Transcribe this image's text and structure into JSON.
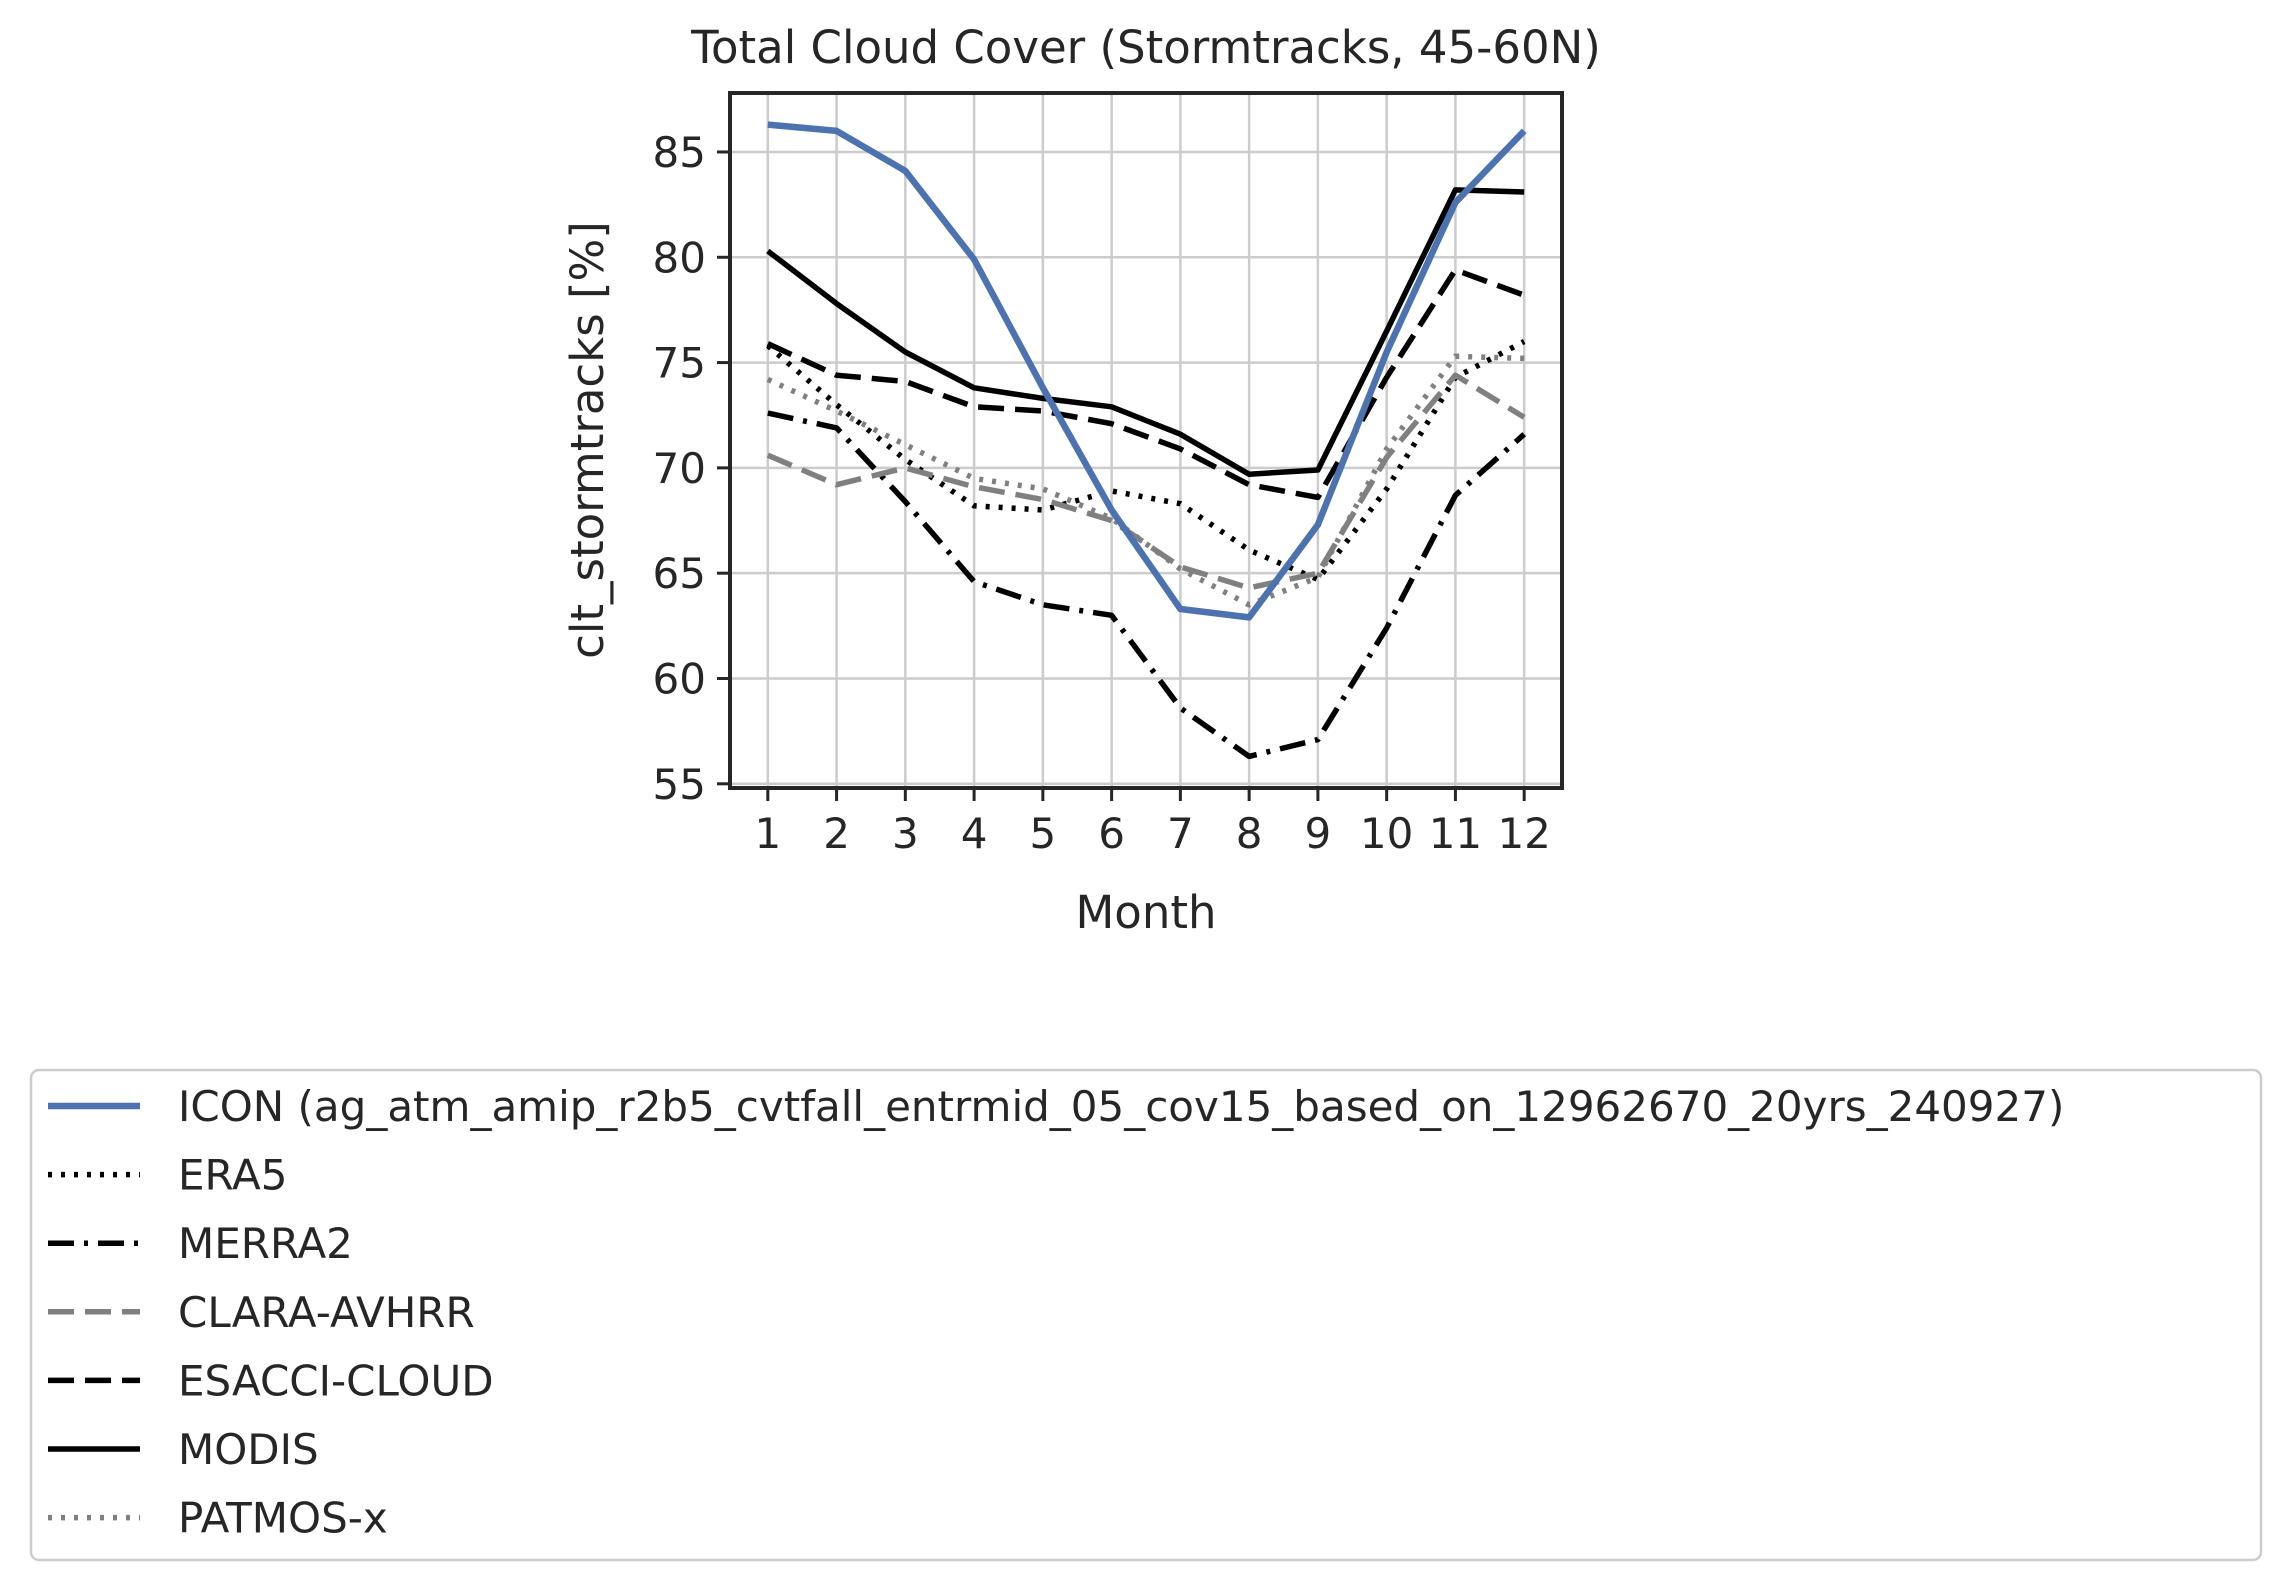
{
  "chart_data": {
    "type": "line",
    "title": "Total Cloud Cover (Stormtracks, 45-60N)",
    "xlabel": "Month",
    "ylabel": "clt_stormtracks [%]",
    "x": [
      1,
      2,
      3,
      4,
      5,
      6,
      7,
      8,
      9,
      10,
      11,
      12
    ],
    "xlim": [
      0.45,
      12.55
    ],
    "ylim": [
      54.8,
      87.8
    ],
    "yticks": [
      55,
      60,
      65,
      70,
      75,
      80,
      85
    ],
    "grid": true,
    "legend_position": "below plot",
    "series": [
      {
        "name": "ICON (ag_atm_amip_r2b5_cvtfall_entrmid_05_cov15_based_on_12962670_20yrs_240927)",
        "color": "#4c72b0",
        "style": "solid",
        "values": [
          86.3,
          86.0,
          84.1,
          79.9,
          73.8,
          68.0,
          63.3,
          62.9,
          67.3,
          75.5,
          82.6,
          86.0
        ]
      },
      {
        "name": "ERA5",
        "color": "#000000",
        "style": "dotted",
        "values": [
          75.8,
          73.0,
          70.4,
          68.2,
          68.0,
          68.9,
          68.3,
          66.1,
          64.7,
          69.0,
          74.3,
          76.0
        ]
      },
      {
        "name": "MERRA2",
        "color": "#000000",
        "style": "dashdot",
        "values": [
          72.6,
          71.9,
          68.4,
          64.6,
          63.5,
          63.0,
          58.6,
          56.3,
          57.1,
          62.4,
          68.7,
          71.6
        ]
      },
      {
        "name": "CLARA-AVHRR",
        "color": "#808080",
        "style": "dashed",
        "values": [
          70.6,
          69.2,
          70.0,
          69.1,
          68.5,
          67.5,
          65.3,
          64.3,
          65.0,
          70.5,
          74.4,
          72.4
        ]
      },
      {
        "name": "ESACCI-CLOUD",
        "color": "#000000",
        "style": "dashed",
        "values": [
          75.9,
          74.4,
          74.1,
          72.9,
          72.7,
          72.1,
          70.9,
          69.2,
          68.6,
          74.3,
          79.4,
          78.2
        ]
      },
      {
        "name": "MODIS",
        "color": "#000000",
        "style": "solid",
        "values": [
          80.3,
          77.8,
          75.5,
          73.8,
          73.3,
          72.9,
          71.6,
          69.7,
          69.9,
          76.5,
          83.2,
          83.1
        ]
      },
      {
        "name": "PATMOS-x",
        "color": "#808080",
        "style": "dotted",
        "values": [
          74.2,
          72.7,
          71.1,
          69.5,
          69.0,
          67.6,
          65.2,
          63.5,
          64.8,
          70.9,
          75.3,
          75.2
        ]
      }
    ]
  }
}
